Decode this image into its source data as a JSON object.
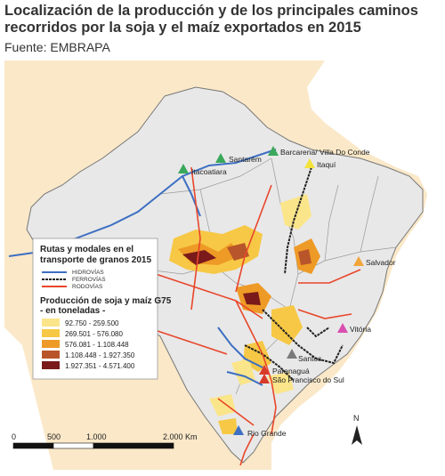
{
  "title_line1": "Localización de la producción y de los principales caminos",
  "title_line2": "recorridos por la soja y el maíz exportados en 2015",
  "source": "Fuente: EMBRAPA",
  "legend": {
    "title_line1": "Rutas y modales en el",
    "title_line2": "transporte de granos 2015",
    "routes": [
      {
        "label": "HIDROVÍAS",
        "color": "#3d6fc2"
      },
      {
        "label": "FERROVÍAS",
        "color": "#222222"
      },
      {
        "label": "RODOVÍAS",
        "color": "#e8462a"
      }
    ],
    "production_title_line1": "Producción de soja y maíz G75",
    "production_title_line2": "- en toneladas -",
    "classes": [
      {
        "label": "92.750 - 259.500",
        "color": "#fbe58a"
      },
      {
        "label": "269.501 - 576.080",
        "color": "#f7c845"
      },
      {
        "label": "576.081 - 1.108.448",
        "color": "#ee9a26"
      },
      {
        "label": "1.108.448 - 1.927.350",
        "color": "#b8552a"
      },
      {
        "label": "1.927.351 - 4.571.400",
        "color": "#7a1a1a"
      }
    ]
  },
  "ports": [
    {
      "name": "Barcarena/ Villa Do Conde",
      "color": "#3aa85a"
    },
    {
      "name": "Itaquí",
      "color": "#f2e23a"
    },
    {
      "name": "Santarém",
      "color": "#3aa85a"
    },
    {
      "name": "Itacoatiara",
      "color": "#3aa85a"
    },
    {
      "name": "Salvador",
      "color": "#f2a53a"
    },
    {
      "name": "Vitória",
      "color": "#d94fb0"
    },
    {
      "name": "Santos",
      "color": "#7a7a7a"
    },
    {
      "name": "Paranaguá",
      "color": "#d83a2a"
    },
    {
      "name": "São Francisco do Sul",
      "color": "#d83a2a"
    },
    {
      "name": "Rio Grande",
      "color": "#3d6fc2"
    }
  ],
  "scale": {
    "ticks": [
      "0",
      "500",
      "1.000",
      "2.000 Km"
    ]
  },
  "north_label": "N",
  "colors": {
    "land_other": "#fae8c8",
    "brazil": "#e8e8e8",
    "sea": "#ffffff",
    "border": "#777777"
  }
}
